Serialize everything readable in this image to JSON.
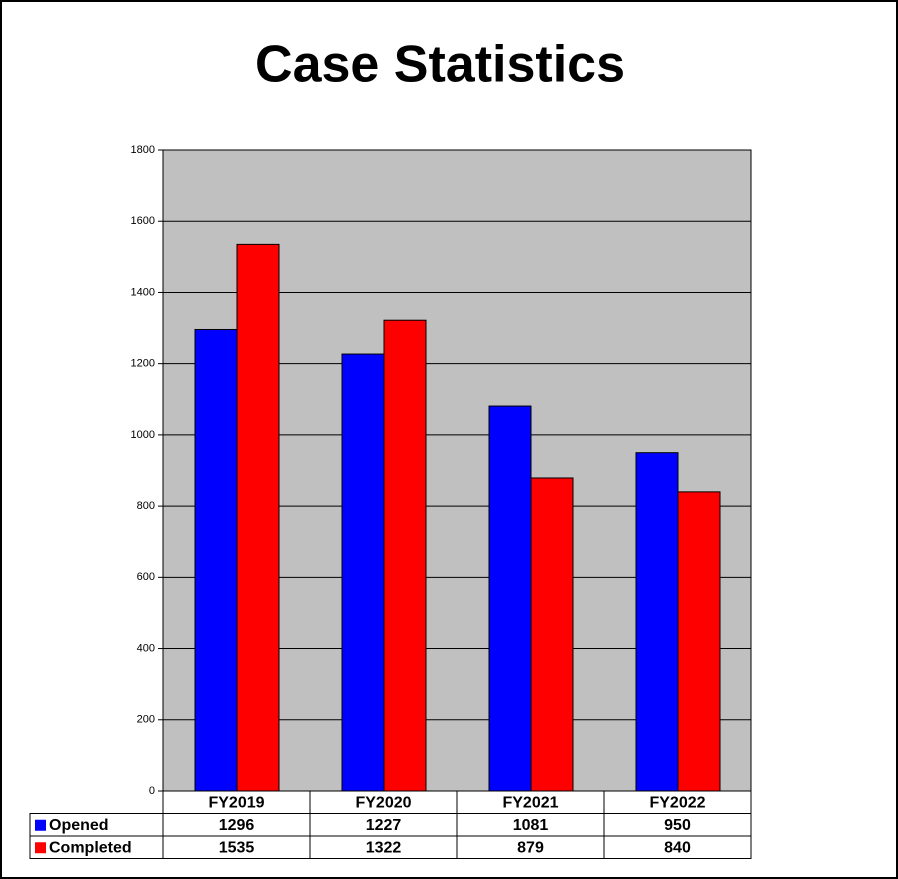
{
  "chart_data": {
    "type": "bar",
    "title": "Case Statistics",
    "categories": [
      "FY2019",
      "FY2020",
      "FY2021",
      "FY2022"
    ],
    "series": [
      {
        "name": "Opened",
        "color": "#0000ff",
        "values": [
          1296,
          1227,
          1081,
          950
        ]
      },
      {
        "name": "Completed",
        "color": "#ff0000",
        "values": [
          1535,
          1322,
          879,
          840
        ]
      }
    ],
    "ylim": [
      0,
      1800
    ],
    "yticks": [
      0,
      200,
      400,
      600,
      800,
      1000,
      1200,
      1400,
      1600,
      1800
    ],
    "grid": true
  }
}
